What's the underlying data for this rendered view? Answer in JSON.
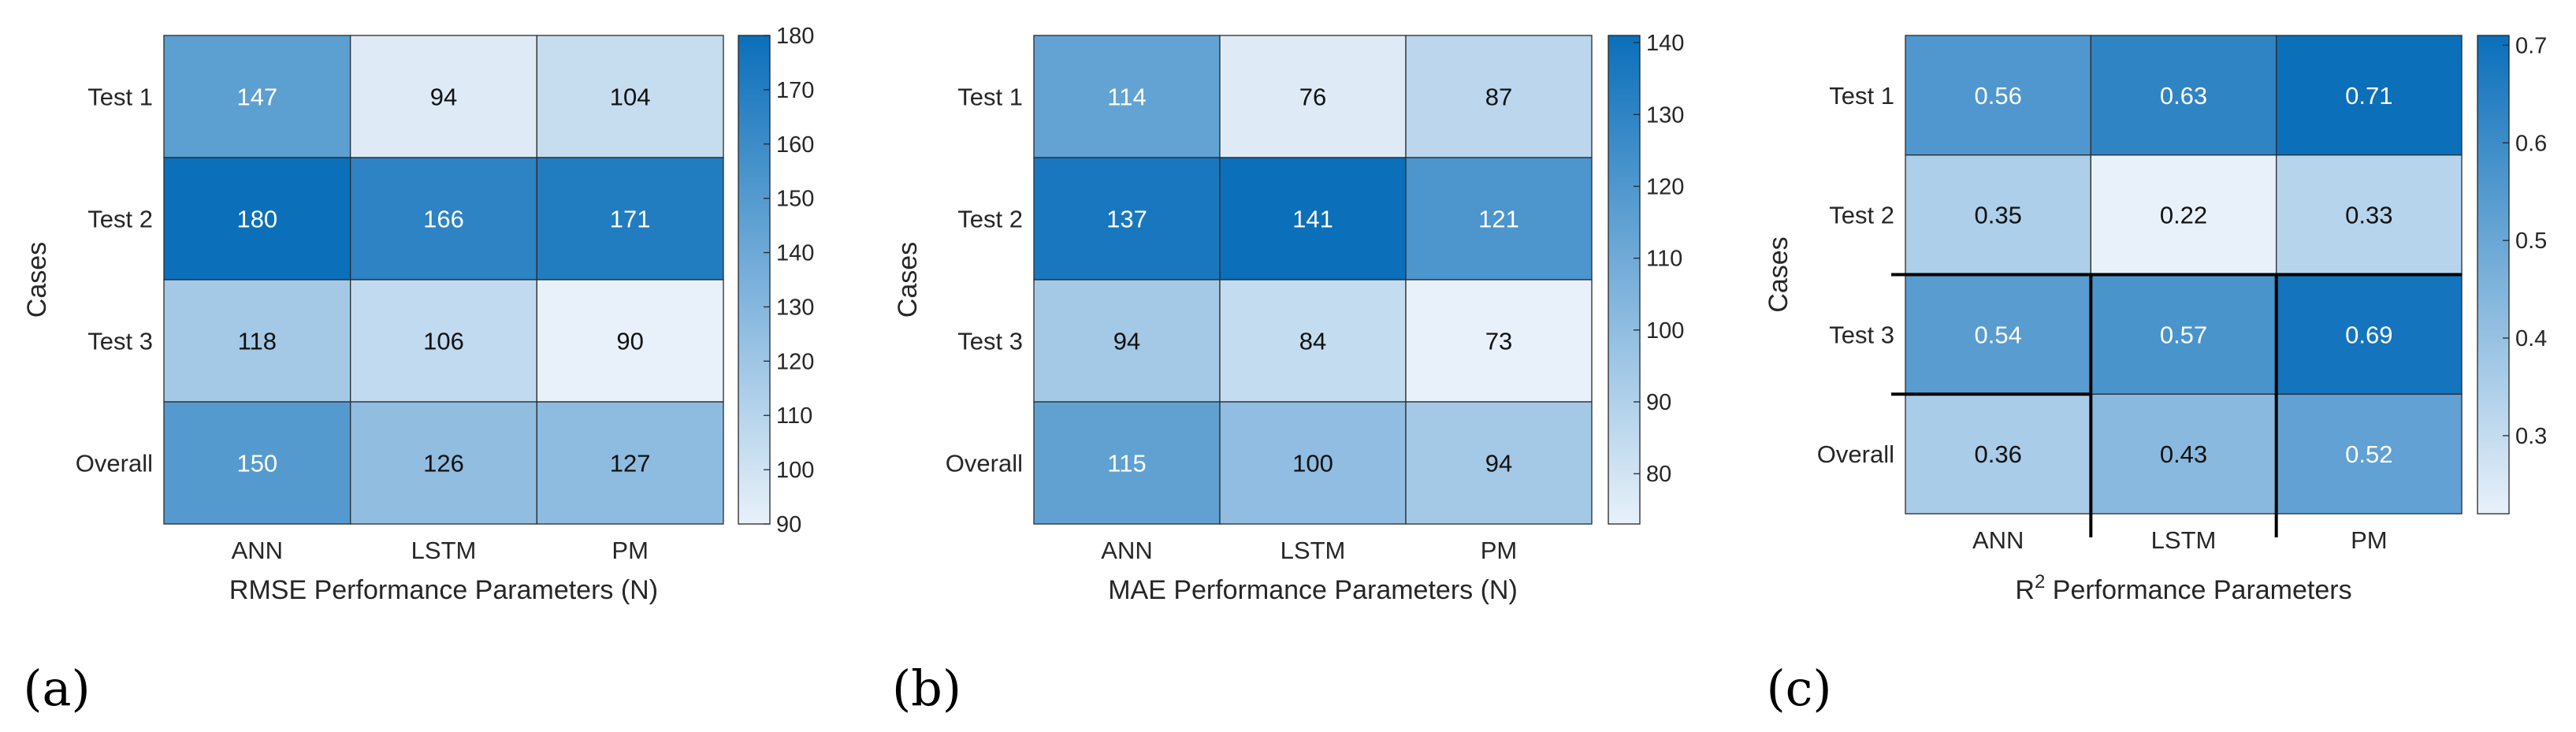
{
  "colors": {
    "low": "#e8f1fa",
    "high": "#0b6fba",
    "grid": "#2b2b2b",
    "axis": "#262626"
  },
  "chart_data": [
    {
      "type": "heatmap",
      "panel_label": "(a)",
      "xlabel": "RMSE Performance Parameters (N)",
      "xlabel_base": "",
      "xlabel_sup": "",
      "ylabel": "Cases",
      "x_categories": [
        "ANN",
        "LSTM",
        "PM"
      ],
      "y_categories": [
        "Test 1",
        "Test 2",
        "Test 3",
        "Overall"
      ],
      "values": [
        [
          147,
          94,
          104
        ],
        [
          180,
          166,
          171
        ],
        [
          118,
          106,
          90
        ],
        [
          150,
          126,
          127
        ]
      ],
      "cell_labels": [
        [
          "147",
          "94",
          "104"
        ],
        [
          "180",
          "166",
          "171"
        ],
        [
          "118",
          "106",
          "90"
        ],
        [
          "150",
          "126",
          "127"
        ]
      ],
      "color_range": [
        90,
        180
      ],
      "colorbar_ticks": [
        90,
        100,
        110,
        120,
        130,
        140,
        150,
        160,
        170,
        180
      ],
      "colorbar_tick_labels": [
        "90",
        "100",
        "110",
        "120",
        "130",
        "140",
        "150",
        "160",
        "170",
        "180"
      ]
    },
    {
      "type": "heatmap",
      "panel_label": "(b)",
      "xlabel": "MAE Performance Parameters (N)",
      "xlabel_base": "",
      "xlabel_sup": "",
      "ylabel": "Cases",
      "x_categories": [
        "ANN",
        "LSTM",
        "PM"
      ],
      "y_categories": [
        "Test 1",
        "Test 2",
        "Test 3",
        "Overall"
      ],
      "values": [
        [
          114,
          76,
          87
        ],
        [
          137,
          141,
          121
        ],
        [
          94,
          84,
          73
        ],
        [
          115,
          100,
          94
        ]
      ],
      "cell_labels": [
        [
          "114",
          "76",
          "87"
        ],
        [
          "137",
          "141",
          "121"
        ],
        [
          "94",
          "84",
          "73"
        ],
        [
          "115",
          "100",
          "94"
        ]
      ],
      "color_range": [
        73,
        141
      ],
      "colorbar_ticks": [
        80,
        90,
        100,
        110,
        120,
        130,
        140
      ],
      "colorbar_tick_labels": [
        "80",
        "90",
        "100",
        "110",
        "120",
        "130",
        "140"
      ]
    },
    {
      "type": "heatmap",
      "panel_label": "(c)",
      "xlabel": "",
      "xlabel_base": "R",
      "xlabel_sup": "2",
      "xlabel_rest": " Performance Parameters",
      "ylabel": "Cases",
      "x_categories": [
        "ANN",
        "LSTM",
        "PM"
      ],
      "y_categories": [
        "Test 1",
        "Test 2",
        "Test 3",
        "Overall"
      ],
      "values": [
        [
          0.56,
          0.63,
          0.71
        ],
        [
          0.35,
          0.22,
          0.33
        ],
        [
          0.54,
          0.57,
          0.69
        ],
        [
          0.36,
          0.43,
          0.52
        ]
      ],
      "cell_labels": [
        [
          "0.56",
          "0.63",
          "0.71"
        ],
        [
          "0.35",
          "0.22",
          "0.33"
        ],
        [
          "0.54",
          "0.57",
          "0.69"
        ],
        [
          "0.36",
          "0.43",
          "0.52"
        ]
      ],
      "color_range": [
        0.22,
        0.71
      ],
      "colorbar_ticks": [
        0.3,
        0.4,
        0.5,
        0.6,
        0.7
      ],
      "colorbar_tick_labels": [
        "0.3",
        "0.4",
        "0.5",
        "0.6",
        "0.7"
      ]
    }
  ]
}
